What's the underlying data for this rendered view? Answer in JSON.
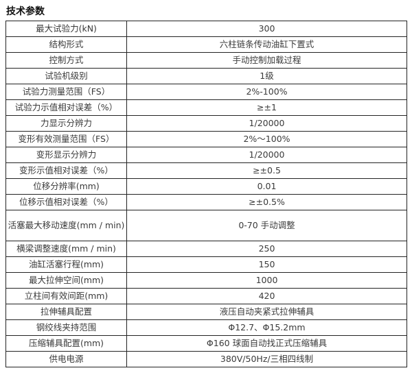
{
  "title": "技术参数",
  "rows": [
    {
      "label": "最大试验力(kN)",
      "value": "300"
    },
    {
      "label": "结构形式",
      "value": "六柱链条传动油缸下置式"
    },
    {
      "label": "控制方式",
      "value": "手动控制加载过程"
    },
    {
      "label": "试验机级别",
      "value": "1级"
    },
    {
      "label": "试验力测量范围（FS）",
      "value": "2%-100%"
    },
    {
      "label": "试验力示值相对误差（%）",
      "value": "≥±1"
    },
    {
      "label": "力显示分辨力",
      "value": "1/20000"
    },
    {
      "label": "变形有效测量范围（FS）",
      "value": "2%～100%"
    },
    {
      "label": "变形显示分辨力",
      "value": "1/20000"
    },
    {
      "label": "变形示值相对误差（%）",
      "value": "≥±0.5"
    },
    {
      "label": "位移分辨率(mm)",
      "value": "0.01"
    },
    {
      "label": "位移示值相对误差（%）",
      "value": "≥±0.5%"
    },
    {
      "label": "活塞最大移动速度(mm / min)",
      "value": "0-70 手动调整"
    },
    {
      "label": "横梁调整速度(mm / min)",
      "value": "250"
    },
    {
      "label": "油缸活塞行程(mm)",
      "value": "150"
    },
    {
      "label": "最大拉伸空间(mm)",
      "value": "1000"
    },
    {
      "label": "立柱间有效间距(mm)",
      "value": "420"
    },
    {
      "label": "拉伸辅具配置",
      "value": "液压自动夹紧式拉伸辅具"
    },
    {
      "label": "钢绞线夹持范围",
      "value": "Φ12.7、Φ15.2mm"
    },
    {
      "label": "压缩辅具配置(mm)",
      "value": "Φ160 球面自动找正式压缩辅具"
    },
    {
      "label": "供电电源",
      "value": "380V/50Hz/三相四线制"
    }
  ]
}
